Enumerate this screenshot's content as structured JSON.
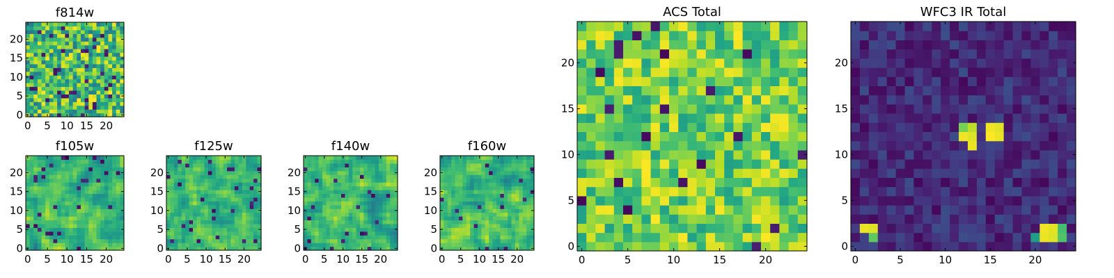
{
  "chart_data": [
    {
      "type": "heatmap",
      "id": "f814w",
      "title": "f814w",
      "grid_size": 25,
      "xlim": [
        0,
        24
      ],
      "ylim": [
        0,
        24
      ],
      "xticks": [
        "0",
        "5",
        "10",
        "15",
        "20"
      ],
      "yticks": [
        "0",
        "5",
        "10",
        "15",
        "20"
      ],
      "colormap": "viridis",
      "pattern": "uniform-noise",
      "value_range": [
        0,
        1
      ],
      "seed": 814
    },
    {
      "type": "heatmap",
      "id": "f105w",
      "title": "f105w",
      "grid_size": 25,
      "xlim": [
        0,
        24
      ],
      "ylim": [
        0,
        24
      ],
      "xticks": [
        "0",
        "5",
        "10",
        "15",
        "20"
      ],
      "yticks": [
        "0",
        "5",
        "10",
        "15",
        "20"
      ],
      "colormap": "viridis",
      "pattern": "smooth-noise",
      "value_range": [
        0,
        1
      ],
      "seed": 105
    },
    {
      "type": "heatmap",
      "id": "f125w",
      "title": "f125w",
      "grid_size": 25,
      "xlim": [
        0,
        24
      ],
      "ylim": [
        0,
        24
      ],
      "xticks": [
        "0",
        "5",
        "10",
        "15",
        "20"
      ],
      "yticks": [
        "0",
        "5",
        "10",
        "15",
        "20"
      ],
      "colormap": "viridis",
      "pattern": "smooth-noise",
      "value_range": [
        0,
        1
      ],
      "seed": 125
    },
    {
      "type": "heatmap",
      "id": "f140w",
      "title": "f140w",
      "grid_size": 25,
      "xlim": [
        0,
        24
      ],
      "ylim": [
        0,
        24
      ],
      "xticks": [
        "0",
        "5",
        "10",
        "15",
        "20"
      ],
      "yticks": [
        "0",
        "5",
        "10",
        "15",
        "20"
      ],
      "colormap": "viridis",
      "pattern": "smooth-noise",
      "value_range": [
        0,
        1
      ],
      "seed": 140
    },
    {
      "type": "heatmap",
      "id": "f160w",
      "title": "f160w",
      "grid_size": 25,
      "xlim": [
        0,
        24
      ],
      "ylim": [
        0,
        24
      ],
      "xticks": [
        "0",
        "5",
        "10",
        "15",
        "20"
      ],
      "yticks": [
        "0",
        "5",
        "10",
        "15",
        "20"
      ],
      "colormap": "viridis",
      "pattern": "smooth-noise",
      "value_range": [
        0,
        1
      ],
      "seed": 160
    },
    {
      "type": "heatmap",
      "id": "acs",
      "title": "ACS Total",
      "grid_size": 25,
      "xlim": [
        0,
        24
      ],
      "ylim": [
        0,
        24
      ],
      "xticks": [
        "0",
        "5",
        "10",
        "15",
        "20"
      ],
      "yticks": [
        "0",
        "5",
        "10",
        "15",
        "20"
      ],
      "colormap": "viridis",
      "pattern": "uniform-noise-high",
      "value_range": [
        0,
        1
      ],
      "seed": 900
    },
    {
      "type": "heatmap",
      "id": "wfc3ir",
      "title": "WFC3 IR Total",
      "grid_size": 25,
      "xlim": [
        0,
        24
      ],
      "ylim": [
        0,
        24
      ],
      "xticks": [
        "0",
        "5",
        "10",
        "15",
        "20"
      ],
      "yticks": [
        "0",
        "5",
        "10",
        "15",
        "20"
      ],
      "colormap": "viridis",
      "pattern": "low-background-with-sources",
      "value_range": [
        0,
        1
      ],
      "seed": 777,
      "bright_cells": [
        {
          "x": 12,
          "y": 12,
          "v": 0.98
        },
        {
          "x": 13,
          "y": 12,
          "v": 0.95
        },
        {
          "x": 12,
          "y": 13,
          "v": 0.8
        },
        {
          "x": 13,
          "y": 13,
          "v": 0.9
        },
        {
          "x": 13,
          "y": 11,
          "v": 0.97
        },
        {
          "x": 15,
          "y": 12,
          "v": 1.0
        },
        {
          "x": 16,
          "y": 12,
          "v": 0.97
        },
        {
          "x": 15,
          "y": 13,
          "v": 0.98
        },
        {
          "x": 16,
          "y": 13,
          "v": 0.96
        },
        {
          "x": 1,
          "y": 2,
          "v": 0.97
        },
        {
          "x": 2,
          "y": 2,
          "v": 0.95
        },
        {
          "x": 2,
          "y": 1,
          "v": 0.75
        },
        {
          "x": 21,
          "y": 2,
          "v": 0.98
        },
        {
          "x": 22,
          "y": 2,
          "v": 0.96
        },
        {
          "x": 21,
          "y": 1,
          "v": 0.97
        },
        {
          "x": 22,
          "y": 1,
          "v": 0.95
        },
        {
          "x": 23,
          "y": 2,
          "v": 0.7
        },
        {
          "x": 23,
          "y": 1,
          "v": 0.72
        },
        {
          "x": 20,
          "y": 1,
          "v": 0.55
        }
      ]
    }
  ]
}
